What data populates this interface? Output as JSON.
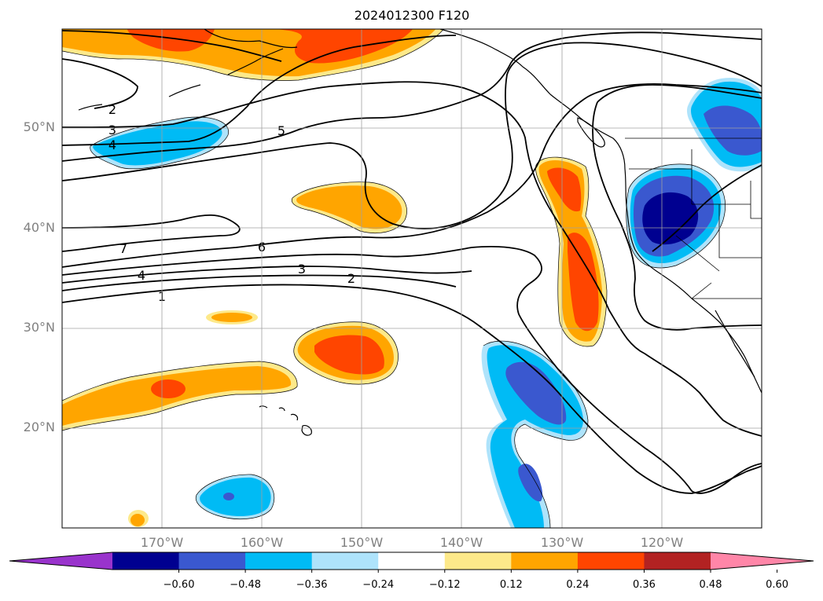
{
  "title": "2024012300 F120",
  "map": {
    "projection": "Mercator",
    "extent": {
      "lon_min": -180,
      "lon_max": -110,
      "lat_min": 10,
      "lat_max": 60
    },
    "gridlines": true,
    "lat_labels": [
      "50°N",
      "40°N",
      "30°N",
      "20°N"
    ],
    "lon_labels": [
      "170°W",
      "160°W",
      "150°W",
      "140°W",
      "130°W",
      "120°W"
    ],
    "contour_labels": [
      "2",
      "3",
      "4",
      "5",
      "7",
      "6",
      "4",
      "3",
      "2",
      "1"
    ]
  },
  "colorbar": {
    "ticks": [
      "−0.60",
      "−0.48",
      "−0.36",
      "−0.24",
      "−0.12",
      "0.12",
      "0.24",
      "0.36",
      "0.48",
      "0.60"
    ],
    "colors": [
      "#9933cc",
      "#000090",
      "#3a58cf",
      "#00bbf5",
      "#aee3fb",
      "#ffffff",
      "#fde98a",
      "#ffa500",
      "#ff4500",
      "#b22222",
      "#ff86a8"
    ],
    "extend": "both"
  },
  "colors": {
    "neg_strong": "#000090",
    "neg_mid": "#3a58cf",
    "neg_light": "#00bbf5",
    "neg_pale": "#aee3fb",
    "pos_pale": "#fde98a",
    "pos_light": "#ffa500",
    "pos_mid": "#ff4500"
  }
}
